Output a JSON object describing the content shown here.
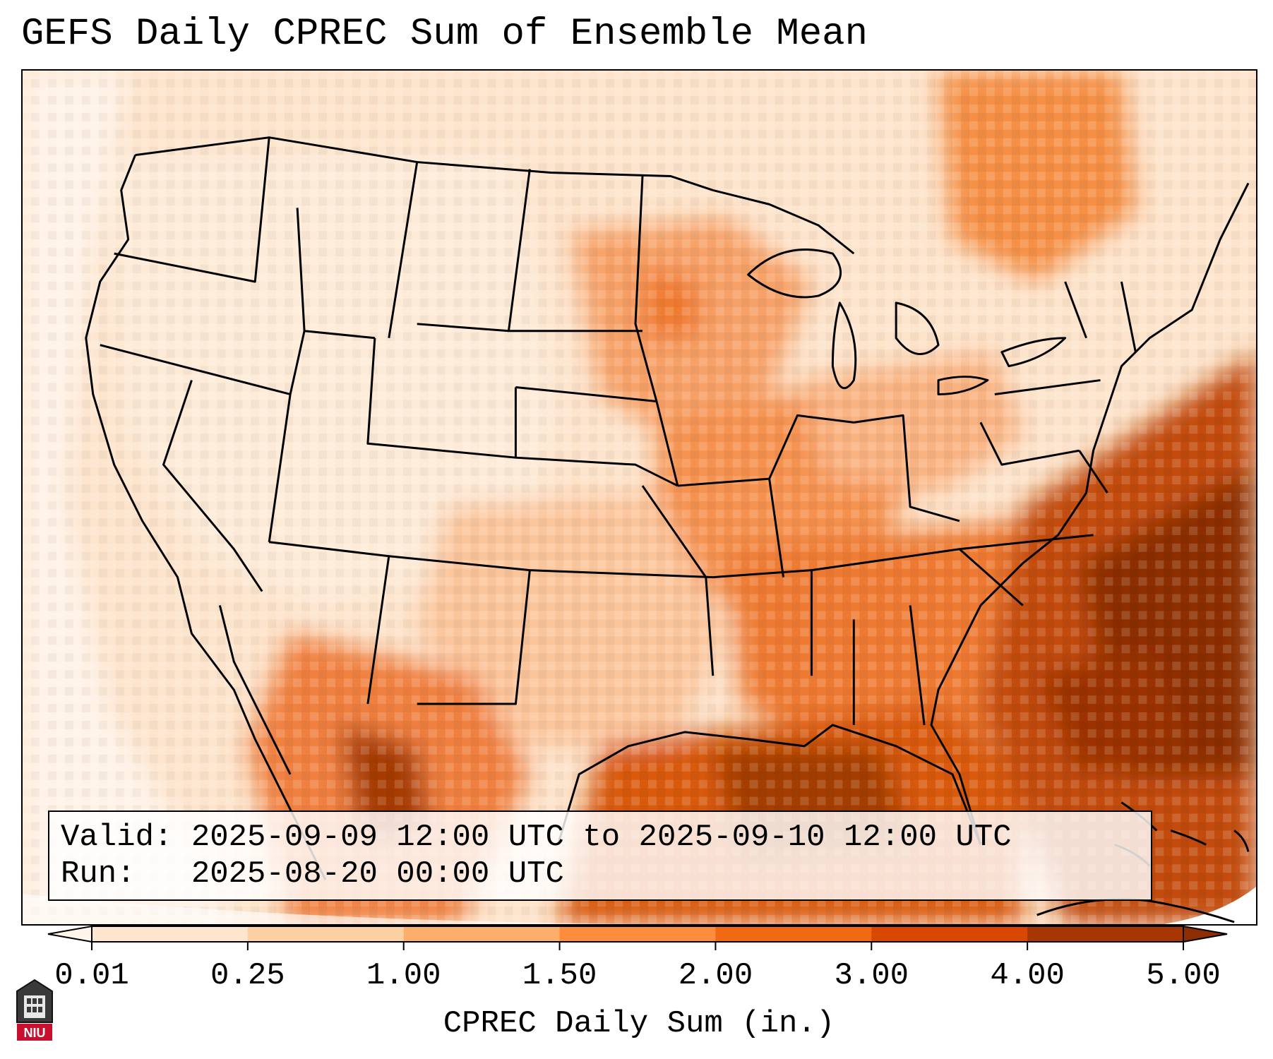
{
  "title": "GEFS Daily CPREC Sum of Ensemble Mean",
  "info": {
    "valid_label": "Valid:",
    "valid_range": "2025-09-09 12:00 UTC to 2025-09-10 12:00 UTC",
    "run_label": "Run:",
    "run_time": "2025-08-20 00:00 UTC"
  },
  "colorbar": {
    "label": "CPREC Daily Sum (in.)",
    "ticks": [
      "0.01",
      "0.25",
      "1.00",
      "1.50",
      "2.00",
      "3.00",
      "4.00",
      "5.00"
    ],
    "colors": [
      "#fff5eb",
      "#fee6ce",
      "#fdd0a2",
      "#fdae6b",
      "#fd8d3c",
      "#f16913",
      "#d94801",
      "#a63603",
      "#8c2d04"
    ]
  },
  "map": {
    "regions": [
      {
        "name": "Gulf of Mexico",
        "level": 7
      },
      {
        "name": "Western Atlantic",
        "level": 8
      },
      {
        "name": "Southeast US",
        "level": 5
      },
      {
        "name": "Mississippi Valley",
        "level": 4
      },
      {
        "name": "Upper Midwest",
        "level": 4
      },
      {
        "name": "Southern Quebec",
        "level": 4
      },
      {
        "name": "Western US",
        "level": 1
      },
      {
        "name": "Pacific Ocean",
        "level": 0
      }
    ]
  },
  "logo": {
    "text": "NIU"
  }
}
